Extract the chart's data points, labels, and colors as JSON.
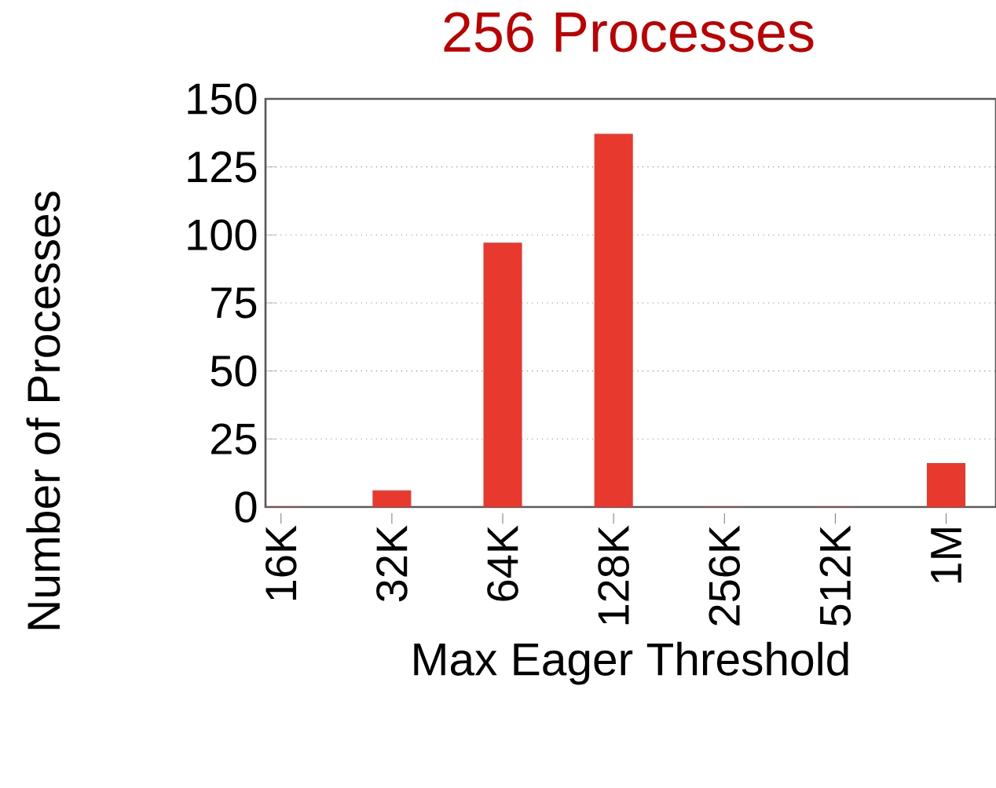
{
  "chart_data": {
    "type": "bar",
    "title": "256 Processes",
    "xlabel": "Max Eager Threshold",
    "ylabel": "Number of Processes",
    "categories": [
      "16K",
      "32K",
      "64K",
      "128K",
      "256K",
      "512K",
      "1M"
    ],
    "values": [
      0,
      6,
      97,
      137,
      0,
      0,
      16
    ],
    "color": "#e8392f",
    "ylim": [
      0,
      150
    ],
    "yticks": [
      0,
      25,
      50,
      75,
      100,
      125,
      150
    ],
    "grid": "y"
  }
}
